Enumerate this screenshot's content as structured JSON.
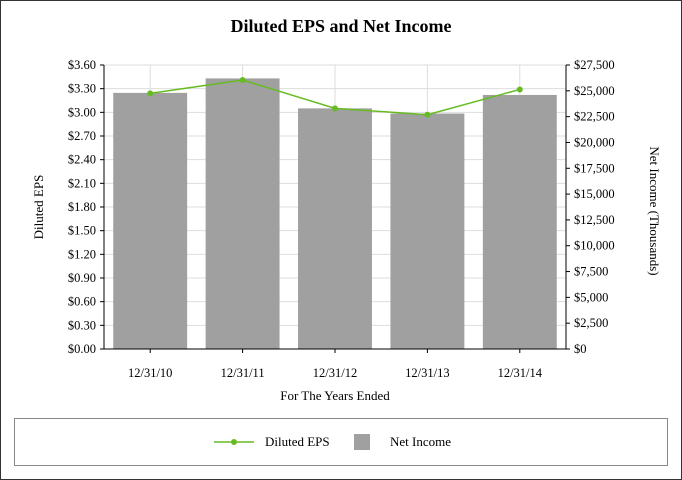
{
  "chart_data": {
    "type": "bar",
    "title": "Diluted EPS and Net Income",
    "xlabel": "For The Years Ended",
    "ylabel_left": "Diluted EPS",
    "ylabel_right": "Net Income (Thousands)",
    "categories": [
      "12/31/10",
      "12/31/11",
      "12/31/12",
      "12/31/13",
      "12/31/14"
    ],
    "series": [
      {
        "name": "Net Income",
        "kind": "bar",
        "axis": "right",
        "color": "#a0a0a0",
        "values": [
          24800,
          26200,
          23300,
          22800,
          24600
        ]
      },
      {
        "name": "Diluted EPS",
        "kind": "line",
        "axis": "left",
        "color": "#66bb22",
        "values": [
          3.24,
          3.41,
          3.05,
          2.97,
          3.29
        ]
      }
    ],
    "ylim_left": [
      0,
      3.6
    ],
    "ylim_right": [
      0,
      27500
    ],
    "left_ticks": [
      "$0.00",
      "$0.30",
      "$0.60",
      "$0.90",
      "$1.20",
      "$1.50",
      "$1.80",
      "$2.10",
      "$2.40",
      "$2.70",
      "$3.00",
      "$3.30",
      "$3.60"
    ],
    "right_ticks": [
      "$0",
      "$2,500",
      "$5,000",
      "$7,500",
      "$10,000",
      "$12,500",
      "$15,000",
      "$17,500",
      "$20,000",
      "$22,500",
      "$25,000",
      "$27,500"
    ],
    "grid": true,
    "legend_position": "bottom"
  }
}
